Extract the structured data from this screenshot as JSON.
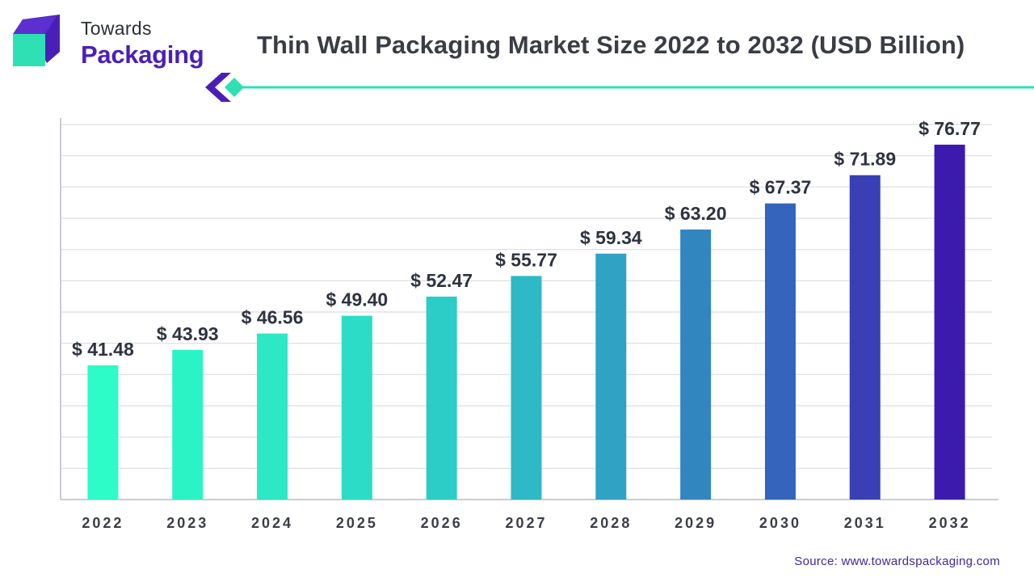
{
  "brand": {
    "line1": "Towards",
    "line2": "Packaging",
    "accent": "#4a1fb8",
    "teal": "#2ee0b4"
  },
  "title": "Thin Wall Packaging Market Size 2022 to 2032 (USD Billion)",
  "source": "Source: www.towardspackaging.com",
  "chart_data": {
    "type": "bar",
    "title": "Thin Wall Packaging Market Size 2022 to 2032 (USD Billion)",
    "categories": [
      "2022",
      "2023",
      "2024",
      "2025",
      "2026",
      "2027",
      "2028",
      "2029",
      "2030",
      "2031",
      "2032"
    ],
    "values": [
      41.48,
      43.93,
      46.56,
      49.4,
      52.47,
      55.77,
      59.34,
      63.2,
      67.37,
      71.89,
      76.77
    ],
    "labels": [
      "$ 41.48",
      "$ 43.93",
      "$ 46.56",
      "$ 49.40",
      "$ 52.47",
      "$ 55.77",
      "$ 59.34",
      "$ 63.20",
      "$ 67.37",
      "$ 71.89",
      "$ 76.77"
    ],
    "xlabel": "",
    "ylabel": "",
    "ylim": [
      20,
      80
    ],
    "grid": true,
    "legend": "none",
    "colors": [
      "#2efcc8",
      "#2cf3c6",
      "#2ce8c5",
      "#2cdcc6",
      "#2ccdc7",
      "#2eb9c6",
      "#30a2c4",
      "#3286c0",
      "#3464bc",
      "#3840b4",
      "#3b1bae"
    ]
  }
}
